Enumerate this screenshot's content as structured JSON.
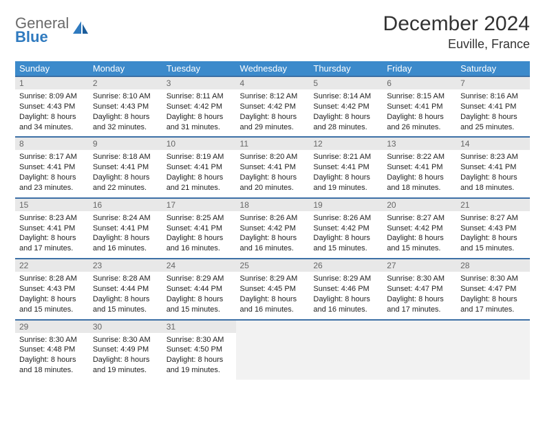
{
  "brand": {
    "part1": "General",
    "part2": "Blue"
  },
  "title": "December 2024",
  "location": "Euville, France",
  "colors": {
    "header_bg": "#3c8acb",
    "header_text": "#ffffff",
    "border": "#3c6fa5",
    "daynum_bg": "#e8e8e8",
    "daynum_text": "#666666",
    "empty_bg": "#f2f2f2",
    "logo_gray": "#6a6a6a",
    "logo_blue": "#2f7abf"
  },
  "weekdays": [
    "Sunday",
    "Monday",
    "Tuesday",
    "Wednesday",
    "Thursday",
    "Friday",
    "Saturday"
  ],
  "weeks": [
    [
      {
        "n": "1",
        "sr": "8:09 AM",
        "ss": "4:43 PM",
        "dl": "8 hours and 34 minutes."
      },
      {
        "n": "2",
        "sr": "8:10 AM",
        "ss": "4:43 PM",
        "dl": "8 hours and 32 minutes."
      },
      {
        "n": "3",
        "sr": "8:11 AM",
        "ss": "4:42 PM",
        "dl": "8 hours and 31 minutes."
      },
      {
        "n": "4",
        "sr": "8:12 AM",
        "ss": "4:42 PM",
        "dl": "8 hours and 29 minutes."
      },
      {
        "n": "5",
        "sr": "8:14 AM",
        "ss": "4:42 PM",
        "dl": "8 hours and 28 minutes."
      },
      {
        "n": "6",
        "sr": "8:15 AM",
        "ss": "4:41 PM",
        "dl": "8 hours and 26 minutes."
      },
      {
        "n": "7",
        "sr": "8:16 AM",
        "ss": "4:41 PM",
        "dl": "8 hours and 25 minutes."
      }
    ],
    [
      {
        "n": "8",
        "sr": "8:17 AM",
        "ss": "4:41 PM",
        "dl": "8 hours and 23 minutes."
      },
      {
        "n": "9",
        "sr": "8:18 AM",
        "ss": "4:41 PM",
        "dl": "8 hours and 22 minutes."
      },
      {
        "n": "10",
        "sr": "8:19 AM",
        "ss": "4:41 PM",
        "dl": "8 hours and 21 minutes."
      },
      {
        "n": "11",
        "sr": "8:20 AM",
        "ss": "4:41 PM",
        "dl": "8 hours and 20 minutes."
      },
      {
        "n": "12",
        "sr": "8:21 AM",
        "ss": "4:41 PM",
        "dl": "8 hours and 19 minutes."
      },
      {
        "n": "13",
        "sr": "8:22 AM",
        "ss": "4:41 PM",
        "dl": "8 hours and 18 minutes."
      },
      {
        "n": "14",
        "sr": "8:23 AM",
        "ss": "4:41 PM",
        "dl": "8 hours and 18 minutes."
      }
    ],
    [
      {
        "n": "15",
        "sr": "8:23 AM",
        "ss": "4:41 PM",
        "dl": "8 hours and 17 minutes."
      },
      {
        "n": "16",
        "sr": "8:24 AM",
        "ss": "4:41 PM",
        "dl": "8 hours and 16 minutes."
      },
      {
        "n": "17",
        "sr": "8:25 AM",
        "ss": "4:41 PM",
        "dl": "8 hours and 16 minutes."
      },
      {
        "n": "18",
        "sr": "8:26 AM",
        "ss": "4:42 PM",
        "dl": "8 hours and 16 minutes."
      },
      {
        "n": "19",
        "sr": "8:26 AM",
        "ss": "4:42 PM",
        "dl": "8 hours and 15 minutes."
      },
      {
        "n": "20",
        "sr": "8:27 AM",
        "ss": "4:42 PM",
        "dl": "8 hours and 15 minutes."
      },
      {
        "n": "21",
        "sr": "8:27 AM",
        "ss": "4:43 PM",
        "dl": "8 hours and 15 minutes."
      }
    ],
    [
      {
        "n": "22",
        "sr": "8:28 AM",
        "ss": "4:43 PM",
        "dl": "8 hours and 15 minutes."
      },
      {
        "n": "23",
        "sr": "8:28 AM",
        "ss": "4:44 PM",
        "dl": "8 hours and 15 minutes."
      },
      {
        "n": "24",
        "sr": "8:29 AM",
        "ss": "4:44 PM",
        "dl": "8 hours and 15 minutes."
      },
      {
        "n": "25",
        "sr": "8:29 AM",
        "ss": "4:45 PM",
        "dl": "8 hours and 16 minutes."
      },
      {
        "n": "26",
        "sr": "8:29 AM",
        "ss": "4:46 PM",
        "dl": "8 hours and 16 minutes."
      },
      {
        "n": "27",
        "sr": "8:30 AM",
        "ss": "4:47 PM",
        "dl": "8 hours and 17 minutes."
      },
      {
        "n": "28",
        "sr": "8:30 AM",
        "ss": "4:47 PM",
        "dl": "8 hours and 17 minutes."
      }
    ],
    [
      {
        "n": "29",
        "sr": "8:30 AM",
        "ss": "4:48 PM",
        "dl": "8 hours and 18 minutes."
      },
      {
        "n": "30",
        "sr": "8:30 AM",
        "ss": "4:49 PM",
        "dl": "8 hours and 19 minutes."
      },
      {
        "n": "31",
        "sr": "8:30 AM",
        "ss": "4:50 PM",
        "dl": "8 hours and 19 minutes."
      },
      null,
      null,
      null,
      null
    ]
  ],
  "labels": {
    "sunrise": "Sunrise:",
    "sunset": "Sunset:",
    "daylight": "Daylight:"
  }
}
